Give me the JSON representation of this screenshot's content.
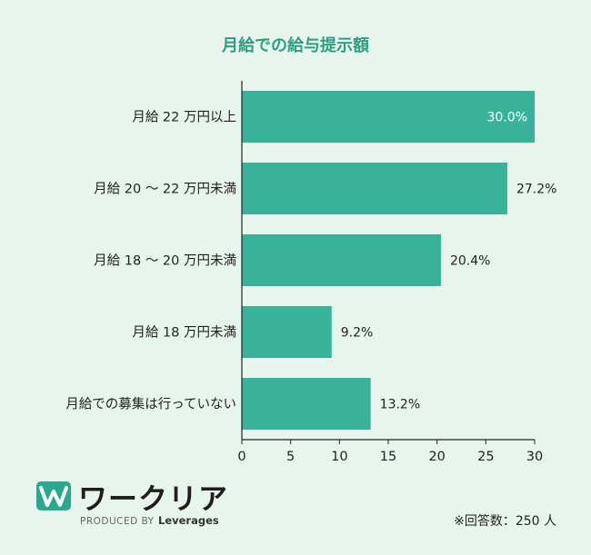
{
  "colors": {
    "bar": "#38b398",
    "title": "#2e9e80",
    "axis": "#222222",
    "background": "#e8f4ee"
  },
  "chart_data": {
    "type": "bar",
    "orientation": "horizontal",
    "title": "月給での給与提示額",
    "categories": [
      "月給 22 万円以上",
      "月給 20 ～ 22 万円未満",
      "月給 18 ～ 20 万円未満",
      "月給 18 万円未満",
      "月給での募集は行っていない"
    ],
    "values": [
      30.0,
      27.2,
      20.4,
      9.2,
      13.2
    ],
    "value_labels": [
      "30.0%",
      "27.2%",
      "20.4%",
      "9.2%",
      "13.2%"
    ],
    "xlim": [
      0,
      30
    ],
    "xticks": [
      "0",
      "5",
      "10",
      "15",
      "20",
      "25",
      "30"
    ],
    "grid": false
  },
  "footer": {
    "note": "※回答数：250 人",
    "brand_name": "ワークリア",
    "brand_produced_by": "PRODUCED BY",
    "brand_company": "Leverages",
    "logo_icon": "w-logo-icon"
  }
}
